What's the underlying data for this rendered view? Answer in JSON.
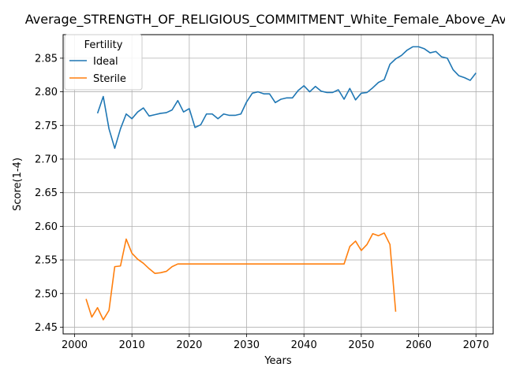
{
  "chart_data": {
    "type": "line",
    "title": "Average_STRENGTH_OF_RELIGIOUS_COMMITMENT_White_Female_Above_Average",
    "xlabel": "Years",
    "ylabel": "Score(1-4)",
    "xlim": [
      1998,
      2073
    ],
    "ylim": [
      2.44,
      2.885
    ],
    "x_ticks": [
      2000,
      2010,
      2020,
      2030,
      2040,
      2050,
      2060,
      2070
    ],
    "y_ticks": [
      2.45,
      2.5,
      2.55,
      2.6,
      2.65,
      2.7,
      2.75,
      2.8,
      2.85
    ],
    "x_tick_labels": [
      "2000",
      "2010",
      "2020",
      "2030",
      "2040",
      "2050",
      "2060",
      "2070"
    ],
    "y_tick_labels": [
      "2.45",
      "2.50",
      "2.55",
      "2.60",
      "2.65",
      "2.70",
      "2.75",
      "2.80",
      "2.85"
    ],
    "grid": true,
    "legend": {
      "title": "Fertility",
      "placement": "upper-left"
    },
    "series": [
      {
        "name": "Ideal",
        "color": "#1f77b4",
        "x": [
          2004,
          2005,
          2006,
          2007,
          2008,
          2009,
          2010,
          2011,
          2012,
          2013,
          2014,
          2015,
          2016,
          2017,
          2018,
          2019,
          2020,
          2021,
          2022,
          2023,
          2024,
          2025,
          2026,
          2027,
          2028,
          2029,
          2030,
          2031,
          2032,
          2033,
          2034,
          2035,
          2036,
          2037,
          2038,
          2039,
          2040,
          2041,
          2042,
          2043,
          2044,
          2045,
          2046,
          2047,
          2048,
          2049,
          2050,
          2051,
          2052,
          2053,
          2054,
          2055,
          2056,
          2057,
          2058,
          2059,
          2060,
          2061,
          2062,
          2063,
          2064,
          2065,
          2066,
          2067,
          2068,
          2069,
          2070
        ],
        "y": [
          2.768,
          2.793,
          2.745,
          2.716,
          2.745,
          2.767,
          2.76,
          2.77,
          2.776,
          2.764,
          2.766,
          2.768,
          2.769,
          2.773,
          2.787,
          2.77,
          2.775,
          2.747,
          2.751,
          2.767,
          2.767,
          2.76,
          2.767,
          2.765,
          2.765,
          2.767,
          2.785,
          2.798,
          2.8,
          2.797,
          2.797,
          2.784,
          2.789,
          2.791,
          2.791,
          2.802,
          2.809,
          2.8,
          2.808,
          2.801,
          2.799,
          2.799,
          2.803,
          2.789,
          2.805,
          2.788,
          2.798,
          2.799,
          2.806,
          2.814,
          2.818,
          2.841,
          2.849,
          2.854,
          2.862,
          2.867,
          2.867,
          2.864,
          2.858,
          2.86,
          2.852,
          2.85,
          2.833,
          2.824,
          2.821,
          2.817,
          2.828
        ]
      },
      {
        "name": "Sterile",
        "color": "#ff7f0e",
        "x": [
          2002,
          2003,
          2004,
          2005,
          2006,
          2007,
          2008,
          2009,
          2010,
          2011,
          2012,
          2013,
          2014,
          2015,
          2016,
          2017,
          2018,
          2019,
          2020,
          2021,
          2022,
          2023,
          2024,
          2025,
          2026,
          2027,
          2028,
          2029,
          2030,
          2031,
          2032,
          2033,
          2034,
          2035,
          2036,
          2037,
          2038,
          2039,
          2040,
          2041,
          2042,
          2043,
          2044,
          2045,
          2046,
          2047,
          2048,
          2049,
          2050,
          2051,
          2052,
          2053,
          2054,
          2055,
          2056
        ],
        "y": [
          2.492,
          2.465,
          2.479,
          2.461,
          2.475,
          2.54,
          2.541,
          2.581,
          2.56,
          2.551,
          2.545,
          2.537,
          2.53,
          2.531,
          2.533,
          2.54,
          2.544,
          2.544,
          2.544,
          2.544,
          2.544,
          2.544,
          2.544,
          2.544,
          2.544,
          2.544,
          2.544,
          2.544,
          2.544,
          2.544,
          2.544,
          2.544,
          2.544,
          2.544,
          2.544,
          2.544,
          2.544,
          2.544,
          2.544,
          2.544,
          2.544,
          2.544,
          2.544,
          2.544,
          2.544,
          2.544,
          2.57,
          2.578,
          2.564,
          2.573,
          2.589,
          2.586,
          2.59,
          2.573,
          2.473
        ]
      }
    ]
  }
}
